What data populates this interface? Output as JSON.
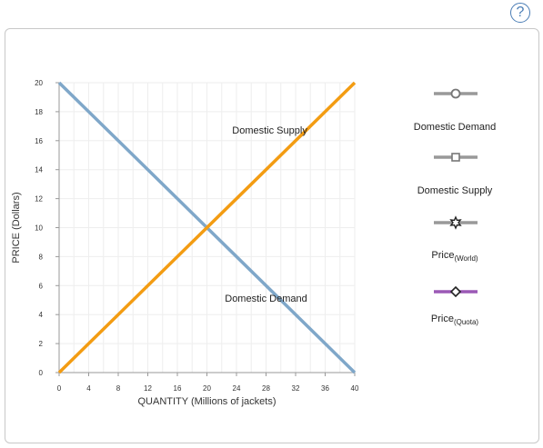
{
  "help": {
    "label": "?"
  },
  "chart_data": {
    "type": "line",
    "xlabel": "QUANTITY (Millions of jackets)",
    "ylabel": "PRICE (Dollars)",
    "xlim": [
      0,
      40
    ],
    "ylim": [
      0,
      20
    ],
    "x_ticks": [
      0,
      4,
      8,
      12,
      16,
      20,
      24,
      28,
      32,
      36,
      40
    ],
    "y_ticks": [
      0,
      2,
      4,
      6,
      8,
      10,
      12,
      14,
      16,
      18,
      20
    ],
    "grid": true,
    "series": [
      {
        "name": "Domestic Supply",
        "color": "#f39c12",
        "points": [
          [
            0,
            0
          ],
          [
            40,
            20
          ]
        ]
      },
      {
        "name": "Domestic Demand",
        "color": "#7fa7c9",
        "points": [
          [
            0,
            20
          ],
          [
            40,
            0
          ]
        ]
      }
    ],
    "annotations": [
      {
        "text": "Domestic Supply",
        "x": 28.5,
        "y": 16.5
      },
      {
        "text": "Domestic Demand",
        "x": 28,
        "y": 4.9
      }
    ]
  },
  "legend": {
    "items": [
      {
        "label": "Domestic Demand",
        "sub": "",
        "marker": "circle",
        "color": "#999999",
        "marker_color": "#777777"
      },
      {
        "label": "Domestic Supply",
        "sub": "",
        "marker": "square",
        "color": "#999999",
        "marker_color": "#777777"
      },
      {
        "label": "Price",
        "sub": "(World)",
        "marker": "star",
        "color": "#999999",
        "marker_color": "#222222"
      },
      {
        "label": "Price",
        "sub": "(Quota)",
        "marker": "diamond",
        "color": "#9b59b6",
        "marker_color": "#222222"
      }
    ]
  }
}
